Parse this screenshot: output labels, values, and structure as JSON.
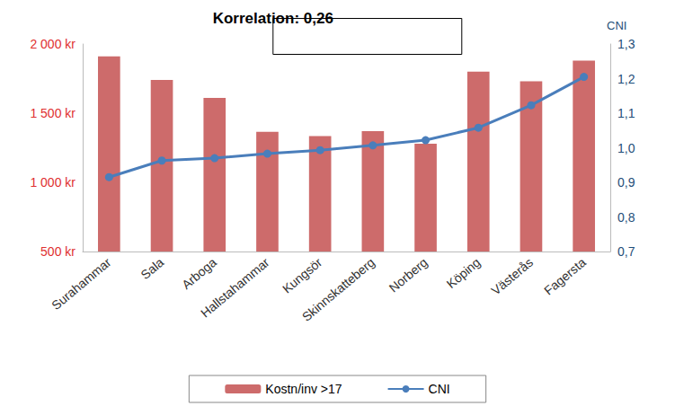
{
  "chart_data": {
    "type": "bar",
    "annotations": [
      "Korrelation: 0,26"
    ],
    "categories": [
      "Surahammar",
      "Sala",
      "Arboga",
      "Hallstahammar",
      "Kungsör",
      "Skinnskatteberg",
      "Norberg",
      "Köping",
      "Västerås",
      "Fagersta"
    ],
    "series": [
      {
        "name": "Kostn/inv >17",
        "type": "bar",
        "color": "#cd6b6b",
        "values": [
          1910,
          1740,
          1610,
          1365,
          1335,
          1370,
          1280,
          1800,
          1730,
          1880
        ]
      },
      {
        "name": "CNI",
        "type": "line",
        "axis": "y2",
        "color": "#4a7ebb",
        "marker": "circle",
        "line_style": "solid",
        "values": [
          0.915,
          0.963,
          0.97,
          0.983,
          0.993,
          1.007,
          1.022,
          1.058,
          1.123,
          1.205
        ]
      }
    ],
    "ylim": [
      500,
      2000
    ],
    "yticks": [
      {
        "value": 500,
        "label": "500 kr"
      },
      {
        "value": 1000,
        "label": "1 000 kr"
      },
      {
        "value": 1500,
        "label": "1 500 kr"
      },
      {
        "value": 2000,
        "label": "2 000 kr"
      }
    ],
    "y2label": "CNI",
    "y2lim": [
      0.7,
      1.3
    ],
    "y2ticks": [
      {
        "value": 0.7,
        "label": "0,7"
      },
      {
        "value": 0.8,
        "label": "0,8"
      },
      {
        "value": 0.9,
        "label": "0,9"
      },
      {
        "value": 1.0,
        "label": "1,0"
      },
      {
        "value": 1.1,
        "label": "1,1"
      },
      {
        "value": 1.2,
        "label": "1,2"
      },
      {
        "value": 1.3,
        "label": "1,3"
      }
    ],
    "grid": false,
    "legend": "bottom"
  }
}
